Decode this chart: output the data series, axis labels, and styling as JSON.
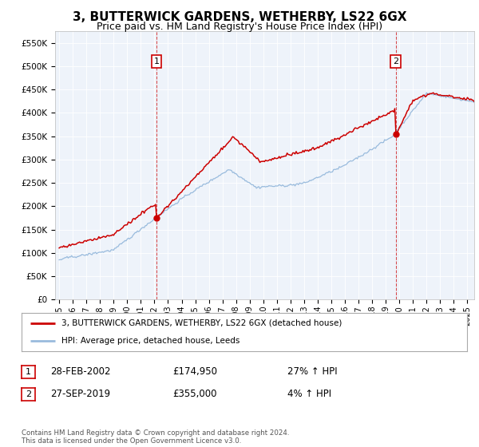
{
  "title": "3, BUTTERWICK GARDENS, WETHERBY, LS22 6GX",
  "subtitle": "Price paid vs. HM Land Registry's House Price Index (HPI)",
  "title_fontsize": 11,
  "subtitle_fontsize": 9,
  "ylabel_ticks": [
    "£0",
    "£50K",
    "£100K",
    "£150K",
    "£200K",
    "£250K",
    "£300K",
    "£350K",
    "£400K",
    "£450K",
    "£500K",
    "£550K"
  ],
  "ytick_values": [
    0,
    50000,
    100000,
    150000,
    200000,
    250000,
    300000,
    350000,
    400000,
    450000,
    500000,
    550000
  ],
  "ylim": [
    0,
    575000
  ],
  "xlim_start": 1994.7,
  "xlim_end": 2025.5,
  "red_color": "#cc0000",
  "blue_color": "#99bbdd",
  "sale1_x": 2002.15,
  "sale1_y": 174950,
  "sale2_x": 2019.73,
  "sale2_y": 355000,
  "legend_label_red": "3, BUTTERWICK GARDENS, WETHERBY, LS22 6GX (detached house)",
  "legend_label_blue": "HPI: Average price, detached house, Leeds",
  "table_rows": [
    {
      "num": "1",
      "date": "28-FEB-2002",
      "price": "£174,950",
      "change": "27% ↑ HPI"
    },
    {
      "num": "2",
      "date": "27-SEP-2019",
      "price": "£355,000",
      "change": "4% ↑ HPI"
    }
  ],
  "footnote": "Contains HM Land Registry data © Crown copyright and database right 2024.\nThis data is licensed under the Open Government Licence v3.0.",
  "background_color": "#ffffff",
  "plot_bg_color": "#eef3fa",
  "grid_color": "#ffffff"
}
